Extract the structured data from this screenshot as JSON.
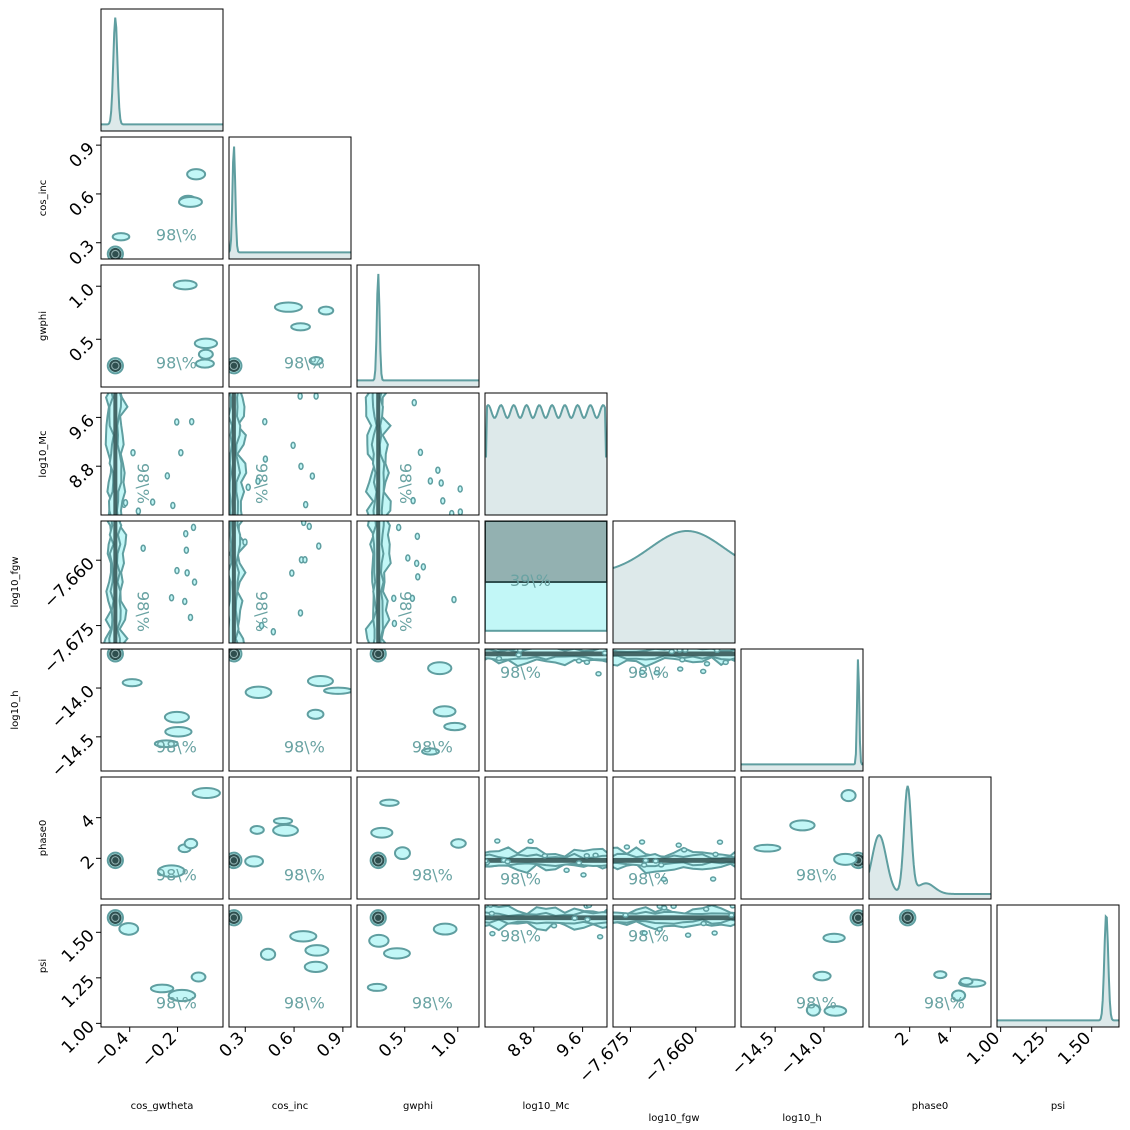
{
  "chart_data": {
    "type": "corner",
    "colors": {
      "line": "#5f9ea0",
      "fill": "#c2f7f7",
      "dark": "#2f4f4f",
      "mid": "#93b1b1",
      "kde_fill": "#dde9ea"
    },
    "contour_label": "98\\%",
    "contour_label_inner": "39\\%",
    "parameters": [
      {
        "name": "cos_gwtheta",
        "range": [
          -0.52,
          -0.01
        ],
        "ticks": [
          -0.4,
          -0.2
        ],
        "tick_labels": [
          "−0.4",
          "−0.2"
        ],
        "peak": -0.46,
        "width": 0.012
      },
      {
        "name": "cos_inc",
        "range": [
          0.2,
          0.95
        ],
        "ticks": [
          0.3,
          0.6,
          0.9
        ],
        "tick_labels": [
          "0.3",
          "0.6",
          "0.9"
        ],
        "peak": 0.23,
        "width": 0.012
      },
      {
        "name": "gwphi",
        "range": [
          0.05,
          1.2
        ],
        "ticks": [
          0.5,
          1.0
        ],
        "tick_labels": [
          "0.5",
          "1.0"
        ],
        "peak": 0.25,
        "width": 0.018
      },
      {
        "name": "log10_Mc",
        "range": [
          8.0,
          10.0
        ],
        "ticks": [
          8.8,
          9.6
        ],
        "tick_labels": [
          "8.8",
          "9.6"
        ],
        "peak": 9.0,
        "width": 1.0
      },
      {
        "name": "log10_fgw",
        "range": [
          -7.679,
          -7.651
        ],
        "ticks": [
          -7.675,
          -7.66
        ],
        "tick_labels": [
          "−7.675",
          "−7.660"
        ],
        "peak": -7.662,
        "width": 0.006
      },
      {
        "name": "log10_h",
        "range": [
          -14.85,
          -13.6
        ],
        "ticks": [
          -14.5,
          -14.0
        ],
        "tick_labels": [
          "−14.5",
          "−14.0"
        ],
        "peak": -13.65,
        "width": 0.015
      },
      {
        "name": "phase0",
        "range": [
          0.0,
          6.0
        ],
        "ticks": [
          2,
          4
        ],
        "tick_labels": [
          "2",
          "4"
        ],
        "peak": 1.9,
        "width": 0.25
      },
      {
        "name": "psi",
        "range": [
          0.98,
          1.65
        ],
        "ticks": [
          1.0,
          1.25,
          1.5
        ],
        "tick_labels": [
          "1.00",
          "1.25",
          "1.50"
        ],
        "peak": 1.58,
        "width": 0.015
      }
    ]
  }
}
